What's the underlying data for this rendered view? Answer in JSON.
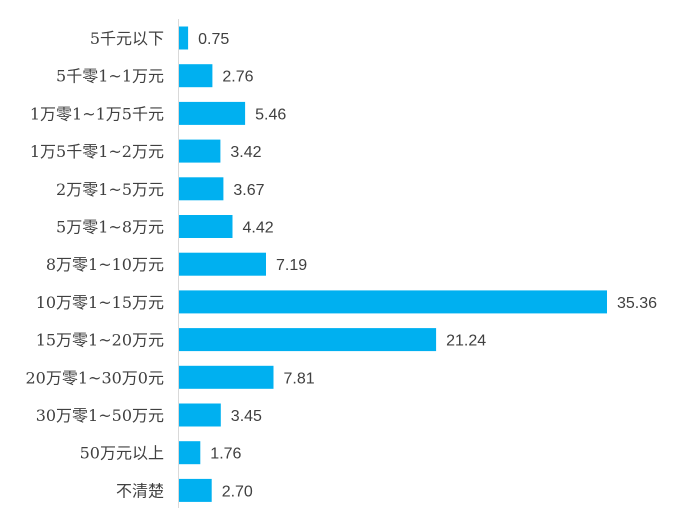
{
  "chart_data": {
    "type": "bar",
    "orientation": "horizontal",
    "title": "",
    "xlabel": "",
    "ylabel": "",
    "xlim": [
      0,
      36
    ],
    "grid": false,
    "legend": "none",
    "bar_color": "#00B0F0",
    "value_format": "2-decimals",
    "categories": [
      "5千元以下",
      "5千零1~1万元",
      "1万零1~1万5千元",
      "1万5千零1~2万元",
      "2万零1~5万元",
      "5万零1~8万元",
      "8万零1~10万元",
      "10万零1~15万元",
      "15万零1~20万元",
      "20万零1~30万0元",
      "30万零1~50万元",
      "50万元以上",
      "不清楚"
    ],
    "values": [
      0.75,
      2.76,
      5.46,
      3.42,
      3.67,
      4.42,
      7.19,
      35.36,
      21.24,
      7.81,
      3.45,
      1.76,
      2.7
    ]
  }
}
